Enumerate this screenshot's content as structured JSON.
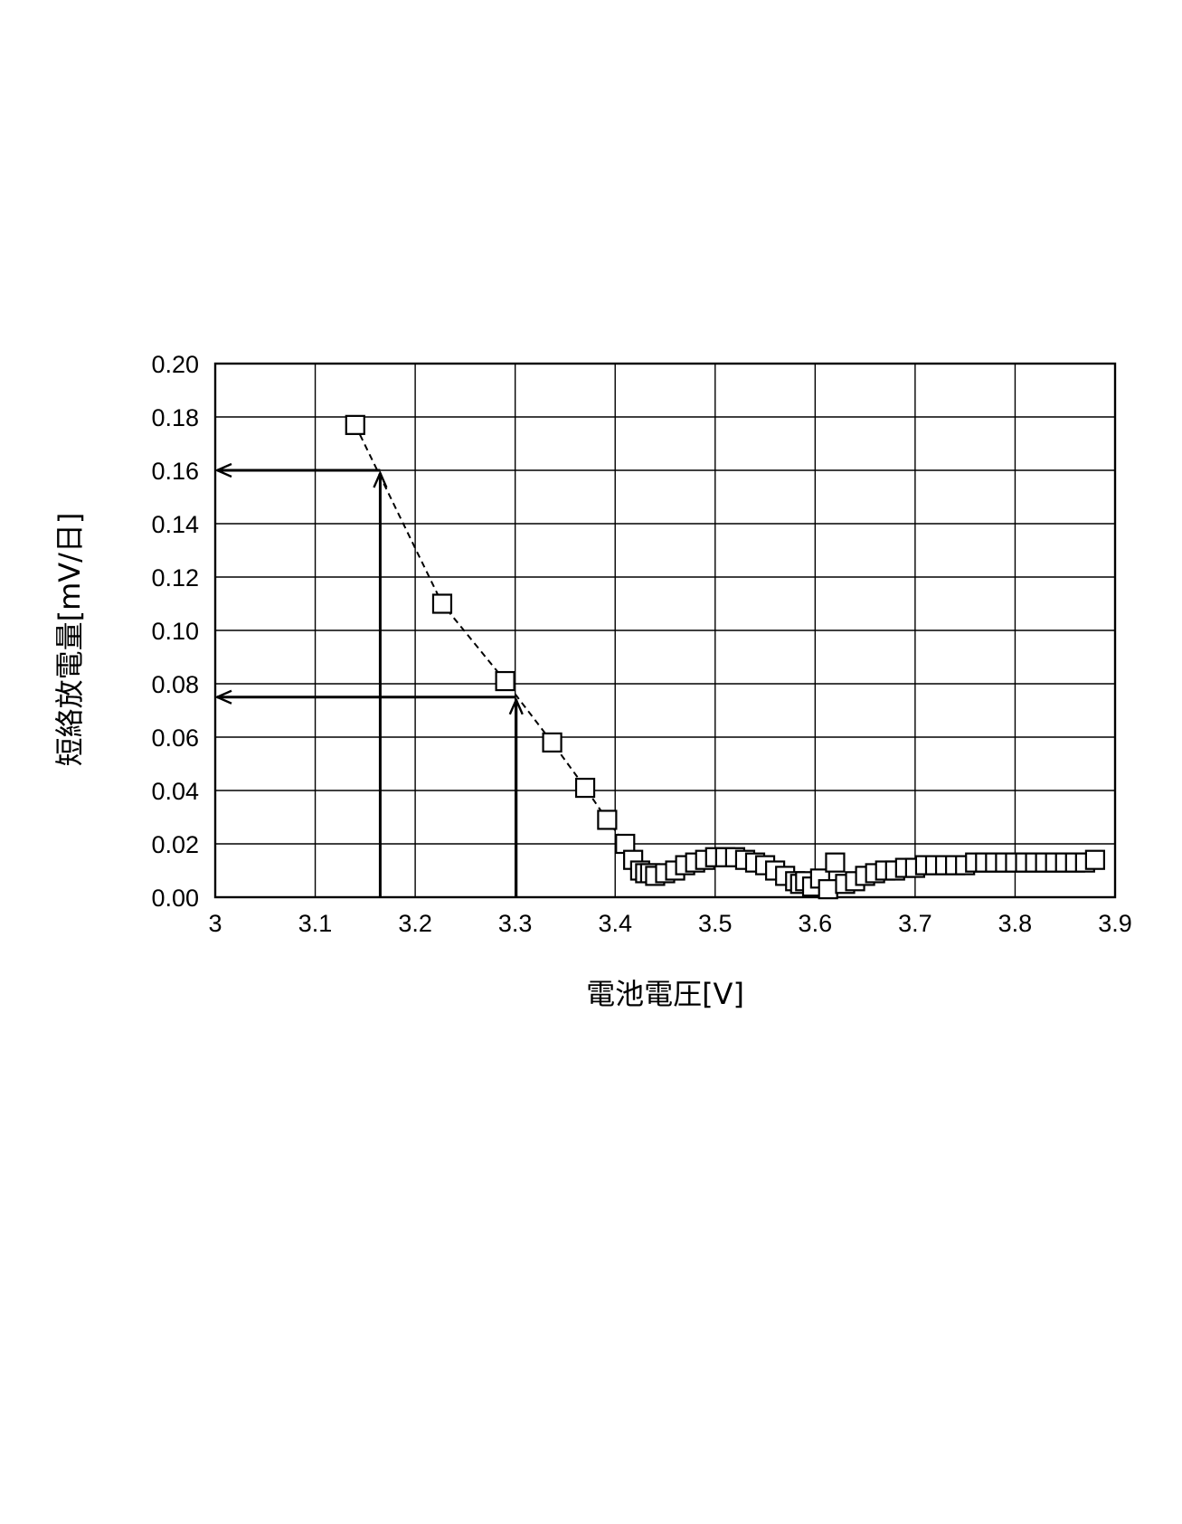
{
  "chart_data": {
    "type": "scatter",
    "xlabel": "電池電圧[V]",
    "ylabel": "短絡放電量[mV/日]",
    "xlim": [
      3,
      3.9
    ],
    "ylim": [
      0,
      0.2
    ],
    "x_ticks": [
      "3",
      "3.1",
      "3.2",
      "3.3",
      "3.4",
      "3.5",
      "3.6",
      "3.7",
      "3.8",
      "3.9"
    ],
    "y_ticks": [
      "0.00",
      "0.02",
      "0.04",
      "0.06",
      "0.08",
      "0.10",
      "0.12",
      "0.14",
      "0.16",
      "0.18",
      "0.20"
    ],
    "grid": true,
    "marker": "open-square",
    "series": [
      {
        "points": [
          [
            3.14,
            0.177
          ],
          [
            3.227,
            0.11
          ],
          [
            3.29,
            0.081
          ],
          [
            3.337,
            0.058
          ],
          [
            3.37,
            0.041
          ],
          [
            3.392,
            0.029
          ],
          [
            3.41,
            0.02
          ],
          [
            3.418,
            0.014
          ],
          [
            3.425,
            0.01
          ],
          [
            3.43,
            0.009
          ],
          [
            3.435,
            0.009
          ],
          [
            3.44,
            0.008
          ],
          [
            3.45,
            0.009
          ],
          [
            3.46,
            0.01
          ],
          [
            3.47,
            0.012
          ],
          [
            3.48,
            0.013
          ],
          [
            3.49,
            0.014
          ],
          [
            3.5,
            0.015
          ],
          [
            3.51,
            0.015
          ],
          [
            3.52,
            0.015
          ],
          [
            3.53,
            0.014
          ],
          [
            3.54,
            0.013
          ],
          [
            3.55,
            0.012
          ],
          [
            3.56,
            0.01
          ],
          [
            3.57,
            0.008
          ],
          [
            3.58,
            0.006
          ],
          [
            3.585,
            0.005
          ],
          [
            3.59,
            0.006
          ],
          [
            3.597,
            0.004
          ],
          [
            3.605,
            0.007
          ],
          [
            3.613,
            0.003
          ],
          [
            3.62,
            0.013
          ],
          [
            3.63,
            0.005
          ],
          [
            3.64,
            0.006
          ],
          [
            3.65,
            0.008
          ],
          [
            3.66,
            0.009
          ],
          [
            3.67,
            0.01
          ],
          [
            3.68,
            0.01
          ],
          [
            3.69,
            0.011
          ],
          [
            3.7,
            0.011
          ],
          [
            3.71,
            0.012
          ],
          [
            3.72,
            0.012
          ],
          [
            3.73,
            0.012
          ],
          [
            3.74,
            0.012
          ],
          [
            3.75,
            0.012
          ],
          [
            3.76,
            0.013
          ],
          [
            3.77,
            0.013
          ],
          [
            3.78,
            0.013
          ],
          [
            3.79,
            0.013
          ],
          [
            3.8,
            0.013
          ],
          [
            3.81,
            0.013
          ],
          [
            3.82,
            0.013
          ],
          [
            3.83,
            0.013
          ],
          [
            3.84,
            0.013
          ],
          [
            3.85,
            0.013
          ],
          [
            3.86,
            0.013
          ],
          [
            3.87,
            0.013
          ],
          [
            3.88,
            0.014
          ]
        ]
      }
    ],
    "trend_line": [
      [
        3.14,
        0.177
      ],
      [
        3.227,
        0.11
      ],
      [
        3.29,
        0.081
      ],
      [
        3.337,
        0.058
      ],
      [
        3.37,
        0.041
      ],
      [
        3.392,
        0.029
      ],
      [
        3.41,
        0.02
      ]
    ],
    "annotations": [
      {
        "x": 3.165,
        "y": 0.16,
        "description": "vertical arrow up from x-axis to curve, then horizontal arrow left to y-axis"
      },
      {
        "x": 3.301,
        "y": 0.075,
        "description": "vertical arrow up from x-axis to curve, then horizontal arrow left to y-axis"
      }
    ]
  }
}
